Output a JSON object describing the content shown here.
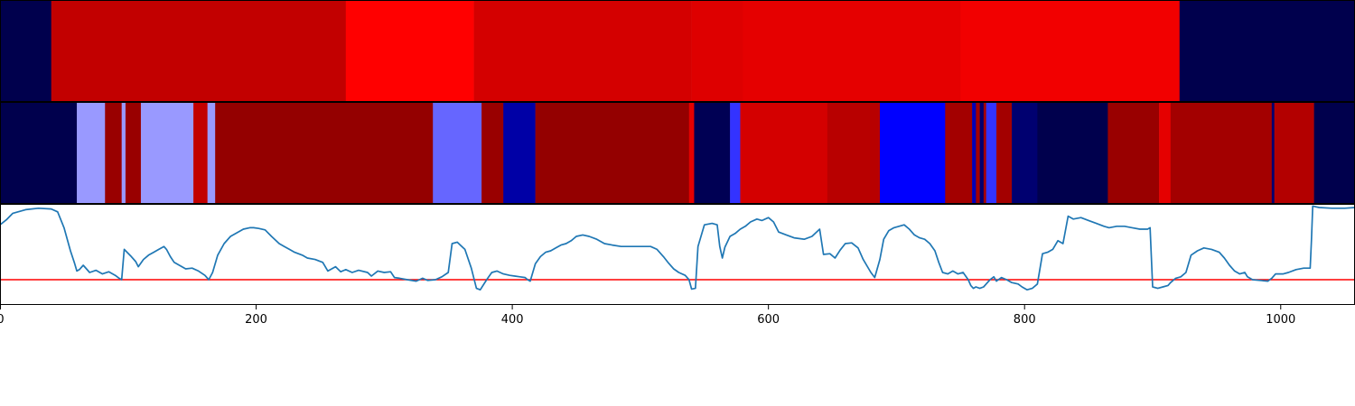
{
  "chart_data": [
    {
      "type": "heatmap",
      "colormap": "seismic",
      "xlim": [
        0,
        1058
      ],
      "vlim": [
        -1,
        1
      ],
      "segments": [
        {
          "start": 0,
          "end": 40,
          "value": -1.0
        },
        {
          "start": 40,
          "end": 270,
          "value": 0.74
        },
        {
          "start": 270,
          "end": 370,
          "value": 0.5
        },
        {
          "start": 370,
          "end": 540,
          "value": 0.67
        },
        {
          "start": 540,
          "end": 580,
          "value": 0.63
        },
        {
          "start": 580,
          "end": 750,
          "value": 0.6
        },
        {
          "start": 750,
          "end": 921,
          "value": 0.55
        },
        {
          "start": 921,
          "end": 1058,
          "value": -1.0
        }
      ]
    },
    {
      "type": "heatmap",
      "colormap": "seismic",
      "xlim": [
        0,
        1058
      ],
      "vlim": [
        -1,
        1
      ],
      "segments": [
        {
          "start": 0,
          "end": 60,
          "value": -1.0
        },
        {
          "start": 60,
          "end": 82,
          "value": -0.2
        },
        {
          "start": 82,
          "end": 95,
          "value": 0.9
        },
        {
          "start": 95,
          "end": 98,
          "value": -0.2
        },
        {
          "start": 98,
          "end": 110,
          "value": 0.9
        },
        {
          "start": 110,
          "end": 151,
          "value": -0.2
        },
        {
          "start": 151,
          "end": 162,
          "value": 0.74
        },
        {
          "start": 162,
          "end": 168,
          "value": -0.2
        },
        {
          "start": 168,
          "end": 338,
          "value": 0.92
        },
        {
          "start": 338,
          "end": 376,
          "value": -0.3
        },
        {
          "start": 376,
          "end": 393,
          "value": 0.9
        },
        {
          "start": 393,
          "end": 418,
          "value": -0.75
        },
        {
          "start": 418,
          "end": 538,
          "value": 0.92
        },
        {
          "start": 538,
          "end": 542,
          "value": 0.6
        },
        {
          "start": 542,
          "end": 570,
          "value": -0.98
        },
        {
          "start": 570,
          "end": 578,
          "value": -0.4
        },
        {
          "start": 578,
          "end": 646,
          "value": 0.67
        },
        {
          "start": 646,
          "end": 687,
          "value": 0.78
        },
        {
          "start": 687,
          "end": 738,
          "value": -0.5
        },
        {
          "start": 738,
          "end": 759,
          "value": 0.86
        },
        {
          "start": 759,
          "end": 762,
          "value": -0.7
        },
        {
          "start": 762,
          "end": 765,
          "value": 0.86
        },
        {
          "start": 765,
          "end": 768,
          "value": -0.9
        },
        {
          "start": 768,
          "end": 770,
          "value": 0.86
        },
        {
          "start": 770,
          "end": 778,
          "value": -0.4
        },
        {
          "start": 778,
          "end": 790,
          "value": 0.86
        },
        {
          "start": 790,
          "end": 810,
          "value": -0.9
        },
        {
          "start": 810,
          "end": 865,
          "value": -1.0
        },
        {
          "start": 865,
          "end": 905,
          "value": 0.9
        },
        {
          "start": 905,
          "end": 914,
          "value": 0.6
        },
        {
          "start": 914,
          "end": 993,
          "value": 0.86
        },
        {
          "start": 993,
          "end": 995,
          "value": -0.9
        },
        {
          "start": 995,
          "end": 1026,
          "value": 0.8
        },
        {
          "start": 1026,
          "end": 1058,
          "value": -1.0
        }
      ]
    },
    {
      "type": "line",
      "xlim": [
        0,
        1058
      ],
      "ylim": [
        -0.35,
        1.05
      ],
      "line_color": "#1f77b4",
      "hline": {
        "y": 0.0,
        "color": "#ff0000"
      },
      "xticks": [
        0,
        200,
        400,
        600,
        800,
        1000
      ],
      "xtick_labels": [
        "0",
        "200",
        "400",
        "600",
        "800",
        "1000"
      ],
      "points": [
        [
          0,
          0.76
        ],
        [
          5,
          0.83
        ],
        [
          10,
          0.92
        ],
        [
          20,
          0.97
        ],
        [
          30,
          0.99
        ],
        [
          40,
          0.98
        ],
        [
          45,
          0.94
        ],
        [
          50,
          0.72
        ],
        [
          55,
          0.4
        ],
        [
          58,
          0.24
        ],
        [
          60,
          0.12
        ],
        [
          62,
          0.14
        ],
        [
          65,
          0.2
        ],
        [
          70,
          0.1
        ],
        [
          75,
          0.13
        ],
        [
          80,
          0.08
        ],
        [
          85,
          0.11
        ],
        [
          90,
          0.06
        ],
        [
          93,
          0.02
        ],
        [
          95,
          0.0
        ],
        [
          97,
          0.42
        ],
        [
          102,
          0.33
        ],
        [
          106,
          0.25
        ],
        [
          108,
          0.18
        ],
        [
          112,
          0.28
        ],
        [
          116,
          0.34
        ],
        [
          120,
          0.38
        ],
        [
          124,
          0.42
        ],
        [
          128,
          0.46
        ],
        [
          130,
          0.42
        ],
        [
          133,
          0.32
        ],
        [
          136,
          0.24
        ],
        [
          140,
          0.2
        ],
        [
          145,
          0.15
        ],
        [
          150,
          0.16
        ],
        [
          155,
          0.12
        ],
        [
          160,
          0.06
        ],
        [
          163,
          0.0
        ],
        [
          166,
          0.1
        ],
        [
          170,
          0.34
        ],
        [
          175,
          0.5
        ],
        [
          180,
          0.6
        ],
        [
          185,
          0.65
        ],
        [
          190,
          0.7
        ],
        [
          195,
          0.72
        ],
        [
          198,
          0.72
        ],
        [
          202,
          0.71
        ],
        [
          207,
          0.69
        ],
        [
          212,
          0.6
        ],
        [
          218,
          0.5
        ],
        [
          222,
          0.46
        ],
        [
          226,
          0.42
        ],
        [
          230,
          0.38
        ],
        [
          236,
          0.34
        ],
        [
          240,
          0.3
        ],
        [
          246,
          0.28
        ],
        [
          252,
          0.24
        ],
        [
          256,
          0.12
        ],
        [
          262,
          0.18
        ],
        [
          266,
          0.11
        ],
        [
          270,
          0.14
        ],
        [
          275,
          0.1
        ],
        [
          280,
          0.13
        ],
        [
          287,
          0.1
        ],
        [
          290,
          0.05
        ],
        [
          295,
          0.12
        ],
        [
          300,
          0.1
        ],
        [
          305,
          0.11
        ],
        [
          308,
          0.03
        ],
        [
          312,
          0.02
        ],
        [
          318,
          0.0
        ],
        [
          325,
          -0.02
        ],
        [
          330,
          0.02
        ],
        [
          334,
          -0.01
        ],
        [
          340,
          0.0
        ],
        [
          345,
          0.04
        ],
        [
          350,
          0.1
        ],
        [
          353,
          0.5
        ],
        [
          357,
          0.52
        ],
        [
          363,
          0.42
        ],
        [
          368,
          0.16
        ],
        [
          372,
          -0.12
        ],
        [
          375,
          -0.14
        ],
        [
          380,
          0.0
        ],
        [
          384,
          0.1
        ],
        [
          388,
          0.12
        ],
        [
          393,
          0.08
        ],
        [
          398,
          0.06
        ],
        [
          402,
          0.05
        ],
        [
          406,
          0.04
        ],
        [
          410,
          0.03
        ],
        [
          412,
          0.0
        ],
        [
          414,
          -0.02
        ],
        [
          418,
          0.22
        ],
        [
          422,
          0.32
        ],
        [
          426,
          0.38
        ],
        [
          430,
          0.4
        ],
        [
          434,
          0.44
        ],
        [
          438,
          0.48
        ],
        [
          442,
          0.5
        ],
        [
          446,
          0.54
        ],
        [
          450,
          0.6
        ],
        [
          455,
          0.62
        ],
        [
          460,
          0.6
        ],
        [
          466,
          0.56
        ],
        [
          472,
          0.5
        ],
        [
          478,
          0.48
        ],
        [
          485,
          0.46
        ],
        [
          492,
          0.46
        ],
        [
          500,
          0.46
        ],
        [
          508,
          0.46
        ],
        [
          513,
          0.42
        ],
        [
          518,
          0.32
        ],
        [
          522,
          0.23
        ],
        [
          526,
          0.15
        ],
        [
          530,
          0.1
        ],
        [
          535,
          0.06
        ],
        [
          538,
          0.0
        ],
        [
          540,
          -0.13
        ],
        [
          543,
          -0.12
        ],
        [
          545,
          0.46
        ],
        [
          550,
          0.76
        ],
        [
          556,
          0.78
        ],
        [
          560,
          0.76
        ],
        [
          562,
          0.46
        ],
        [
          564,
          0.3
        ],
        [
          566,
          0.45
        ],
        [
          570,
          0.6
        ],
        [
          574,
          0.64
        ],
        [
          578,
          0.7
        ],
        [
          582,
          0.74
        ],
        [
          586,
          0.8
        ],
        [
          591,
          0.84
        ],
        [
          595,
          0.82
        ],
        [
          600,
          0.86
        ],
        [
          604,
          0.8
        ],
        [
          608,
          0.66
        ],
        [
          614,
          0.62
        ],
        [
          620,
          0.58
        ],
        [
          628,
          0.56
        ],
        [
          634,
          0.6
        ],
        [
          640,
          0.7
        ],
        [
          643,
          0.35
        ],
        [
          648,
          0.36
        ],
        [
          652,
          0.3
        ],
        [
          656,
          0.41
        ],
        [
          660,
          0.5
        ],
        [
          665,
          0.51
        ],
        [
          670,
          0.44
        ],
        [
          674,
          0.28
        ],
        [
          680,
          0.1
        ],
        [
          683,
          0.03
        ],
        [
          687,
          0.28
        ],
        [
          690,
          0.56
        ],
        [
          694,
          0.68
        ],
        [
          698,
          0.72
        ],
        [
          702,
          0.74
        ],
        [
          706,
          0.76
        ],
        [
          710,
          0.7
        ],
        [
          714,
          0.62
        ],
        [
          718,
          0.58
        ],
        [
          722,
          0.56
        ],
        [
          726,
          0.5
        ],
        [
          730,
          0.4
        ],
        [
          733,
          0.24
        ],
        [
          736,
          0.1
        ],
        [
          740,
          0.08
        ],
        [
          744,
          0.12
        ],
        [
          748,
          0.08
        ],
        [
          752,
          0.1
        ],
        [
          754,
          0.05
        ],
        [
          756,
          0.0
        ],
        [
          758,
          -0.08
        ],
        [
          760,
          -0.12
        ],
        [
          762,
          -0.1
        ],
        [
          765,
          -0.12
        ],
        [
          768,
          -0.1
        ],
        [
          770,
          -0.06
        ],
        [
          773,
          0.0
        ],
        [
          776,
          0.04
        ],
        [
          778,
          -0.02
        ],
        [
          782,
          0.03
        ],
        [
          786,
          0.0
        ],
        [
          790,
          -0.04
        ],
        [
          795,
          -0.06
        ],
        [
          798,
          -0.1
        ],
        [
          802,
          -0.14
        ],
        [
          806,
          -0.12
        ],
        [
          810,
          -0.06
        ],
        [
          814,
          0.36
        ],
        [
          818,
          0.38
        ],
        [
          822,
          0.42
        ],
        [
          826,
          0.54
        ],
        [
          830,
          0.5
        ],
        [
          834,
          0.88
        ],
        [
          838,
          0.84
        ],
        [
          844,
          0.86
        ],
        [
          850,
          0.82
        ],
        [
          856,
          0.78
        ],
        [
          862,
          0.74
        ],
        [
          866,
          0.72
        ],
        [
          872,
          0.74
        ],
        [
          878,
          0.74
        ],
        [
          884,
          0.72
        ],
        [
          890,
          0.7
        ],
        [
          896,
          0.7
        ],
        [
          898,
          0.72
        ],
        [
          900,
          -0.1
        ],
        [
          904,
          -0.12
        ],
        [
          908,
          -0.1
        ],
        [
          912,
          -0.08
        ],
        [
          914,
          -0.04
        ],
        [
          918,
          0.02
        ],
        [
          922,
          0.04
        ],
        [
          926,
          0.1
        ],
        [
          930,
          0.34
        ],
        [
          935,
          0.4
        ],
        [
          940,
          0.44
        ],
        [
          946,
          0.42
        ],
        [
          952,
          0.38
        ],
        [
          956,
          0.3
        ],
        [
          960,
          0.2
        ],
        [
          964,
          0.12
        ],
        [
          968,
          0.08
        ],
        [
          972,
          0.1
        ],
        [
          974,
          0.04
        ],
        [
          978,
          0.0
        ],
        [
          984,
          -0.01
        ],
        [
          990,
          -0.02
        ],
        [
          993,
          0.02
        ],
        [
          996,
          0.08
        ],
        [
          1002,
          0.08
        ],
        [
          1006,
          0.1
        ],
        [
          1012,
          0.14
        ],
        [
          1018,
          0.16
        ],
        [
          1023,
          0.16
        ],
        [
          1024,
          0.55
        ],
        [
          1025,
          1.02
        ],
        [
          1030,
          1.0
        ],
        [
          1040,
          0.99
        ],
        [
          1050,
          0.99
        ],
        [
          1058,
          1.0
        ]
      ]
    }
  ]
}
